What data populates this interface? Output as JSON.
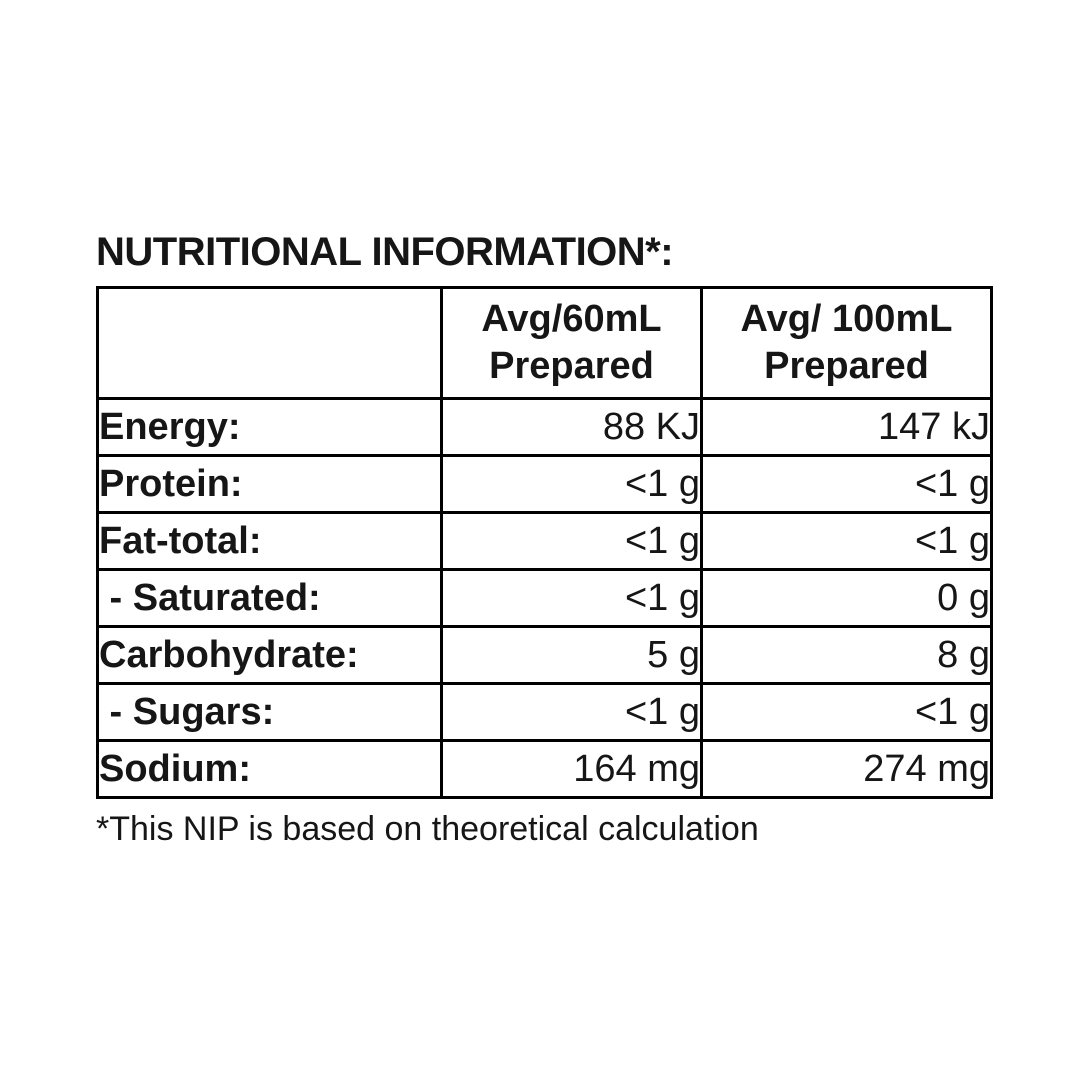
{
  "title": "NUTRITIONAL INFORMATION*:",
  "footnote": "*This NIP is based on theoretical calculation",
  "table": {
    "header": {
      "col1": {
        "line1": "Avg/60mL",
        "line2": "Prepared"
      },
      "col2": {
        "line1": "Avg/ 100mL",
        "line2": "Prepared"
      }
    },
    "rows": [
      {
        "label": "Energy:",
        "col1": "88 KJ",
        "col2": "147 kJ"
      },
      {
        "label": "Protein:",
        "col1": "<1 g",
        "col2": "<1 g"
      },
      {
        "label": "Fat-total:",
        "col1": "<1 g",
        "col2": "<1 g"
      },
      {
        "label": " - Saturated:",
        "col1": "<1 g",
        "col2": "0 g"
      },
      {
        "label": "Carbohydrate:",
        "col1": "5 g",
        "col2": "8 g"
      },
      {
        "label": " - Sugars:",
        "col1": "<1 g",
        "col2": "<1 g"
      },
      {
        "label": "Sodium:",
        "col1": "164 mg",
        "col2": "274 mg"
      }
    ]
  },
  "colors": {
    "text": "#161616",
    "border": "#000000",
    "background": "#ffffff"
  }
}
